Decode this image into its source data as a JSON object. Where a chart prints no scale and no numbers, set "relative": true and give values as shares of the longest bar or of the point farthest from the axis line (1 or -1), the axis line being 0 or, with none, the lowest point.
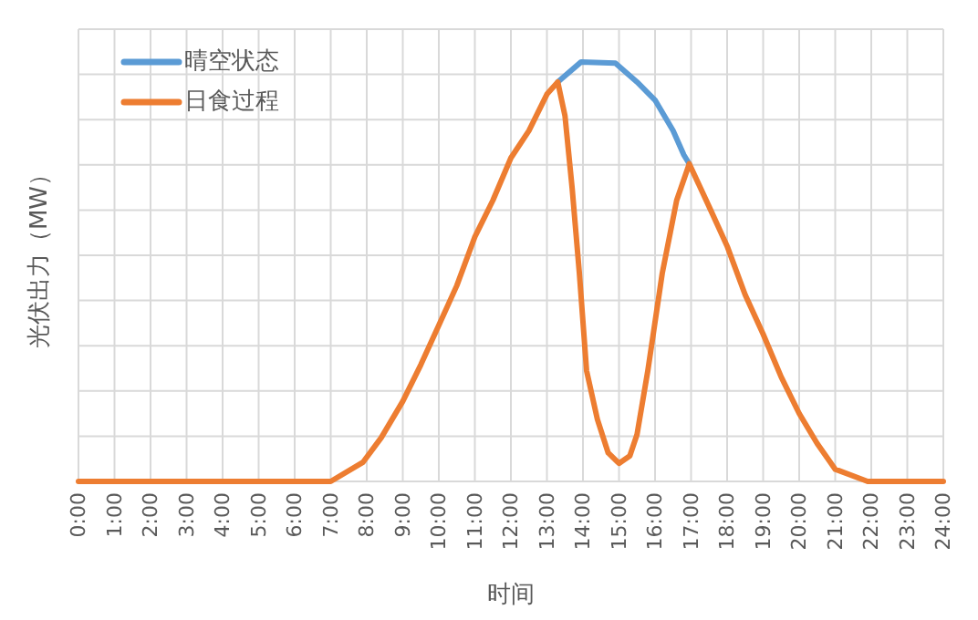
{
  "chart_data": {
    "type": "line",
    "xlabel": "时间",
    "ylabel": "光伏出力（MW）",
    "relative": true,
    "grid": true,
    "legend": "top left",
    "marker": "none",
    "line_style": "solid",
    "xlim": [
      0,
      24
    ],
    "xticks": [
      {
        "value": 0,
        "label": "0:00"
      },
      {
        "value": 1,
        "label": "1:00"
      },
      {
        "value": 2,
        "label": "2:00"
      },
      {
        "value": 3,
        "label": "3:00"
      },
      {
        "value": 4,
        "label": "4:00"
      },
      {
        "value": 5,
        "label": "5:00"
      },
      {
        "value": 6,
        "label": "6:00"
      },
      {
        "value": 7,
        "label": "7:00"
      },
      {
        "value": 8,
        "label": "8:00"
      },
      {
        "value": 9,
        "label": "9:00"
      },
      {
        "value": 10,
        "label": "10:00"
      },
      {
        "value": 11,
        "label": "11:00"
      },
      {
        "value": 12,
        "label": "12:00"
      },
      {
        "value": 13,
        "label": "13:00"
      },
      {
        "value": 14,
        "label": "14:00"
      },
      {
        "value": 15,
        "label": "15:00"
      },
      {
        "value": 16,
        "label": "16:00"
      },
      {
        "value": 17,
        "label": "17:00"
      },
      {
        "value": 18,
        "label": "18:00"
      },
      {
        "value": 19,
        "label": "19:00"
      },
      {
        "value": 20,
        "label": "20:00"
      },
      {
        "value": 21,
        "label": "21:00"
      },
      {
        "value": 22,
        "label": "22:00"
      },
      {
        "value": 23,
        "label": "23:00"
      },
      {
        "value": 24,
        "label": "24:00"
      }
    ],
    "series": [
      {
        "name": "晴空状态",
        "color": "#5b9bd5",
        "x": [
          13.3,
          13.95,
          14.9,
          15.5,
          16,
          16.5,
          16.8,
          16.95
        ],
        "values": [
          0.952,
          1,
          0.997,
          0.952,
          0.909,
          0.836,
          0.778,
          0.757
        ]
      },
      {
        "name": "日食过程",
        "color": "#ed7d31",
        "x": [
          0,
          7,
          7.9,
          8.4,
          9,
          9.5,
          10,
          10.5,
          11,
          11.5,
          12,
          12.5,
          13,
          13.3,
          13.5,
          13.7,
          13.9,
          14.1,
          14.4,
          14.7,
          15,
          15.3,
          15.5,
          15.8,
          16.2,
          16.6,
          16.95,
          17.5,
          18,
          18.5,
          19,
          19.5,
          20,
          20.5,
          21,
          21.9,
          24
        ],
        "values": [
          0,
          0,
          0.046,
          0.104,
          0.191,
          0.278,
          0.372,
          0.467,
          0.583,
          0.67,
          0.771,
          0.836,
          0.923,
          0.952,
          0.872,
          0.699,
          0.496,
          0.264,
          0.148,
          0.068,
          0.043,
          0.061,
          0.112,
          0.264,
          0.496,
          0.67,
          0.757,
          0.655,
          0.561,
          0.445,
          0.351,
          0.249,
          0.162,
          0.09,
          0.029,
          0,
          0
        ]
      }
    ]
  }
}
